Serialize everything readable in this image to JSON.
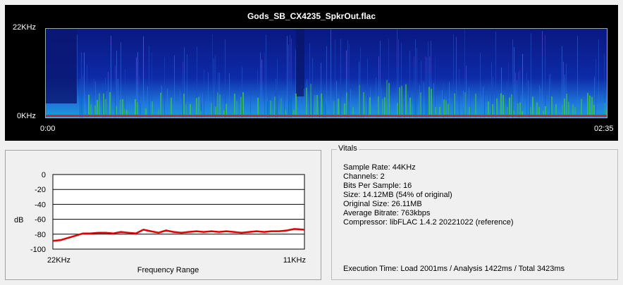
{
  "spectrogram": {
    "title": "Gods_SB_CX4235_SpkrOut.flac",
    "y_top_label": "22KHz",
    "y_bottom_label": "0KHz",
    "x_start_label": "0:00",
    "x_end_label": "02:35",
    "colors": {
      "background": "#000000",
      "low": "#0a1a8c",
      "mid": "#1e7adc",
      "high": "#3cc83c",
      "peak": "#c82828"
    }
  },
  "chart_data": {
    "type": "line",
    "title": "",
    "xlabel": "Frequency Range",
    "ylabel": "dB",
    "x_tick_labels": [
      "22KHz",
      "11KHz"
    ],
    "y_ticks": [
      0,
      -20,
      -40,
      -60,
      -80,
      -100
    ],
    "ylim": [
      -100,
      0
    ],
    "grid": true,
    "series": [
      {
        "color": "#e00000",
        "x": [
          0,
          0.03,
          0.06,
          0.09,
          0.12,
          0.15,
          0.18,
          0.21,
          0.24,
          0.27,
          0.3,
          0.33,
          0.36,
          0.39,
          0.42,
          0.45,
          0.48,
          0.51,
          0.54,
          0.57,
          0.6,
          0.63,
          0.66,
          0.69,
          0.72,
          0.75,
          0.78,
          0.81,
          0.84,
          0.87,
          0.9,
          0.93,
          0.96,
          1.0
        ],
        "values": [
          -89,
          -88,
          -85,
          -82,
          -79,
          -79,
          -78,
          -78,
          -79,
          -77,
          -78,
          -79,
          -74,
          -76,
          -78,
          -75,
          -77,
          -78,
          -77,
          -76,
          -77,
          -76,
          -77,
          -76,
          -77,
          -78,
          -77,
          -76,
          -77,
          -76,
          -76,
          -75,
          -73,
          -74
        ]
      }
    ]
  },
  "vitals": {
    "title": "Vitals",
    "sample_rate": "Sample Rate: 44KHz",
    "channels": "Channels: 2",
    "bits": "Bits Per Sample: 16",
    "size": "Size: 14.12MB (54% of original)",
    "original_size": "Original Size: 26.11MB",
    "bitrate": "Average Bitrate: 763kbps",
    "compressor": "Compressor: libFLAC 1.4.2 20221022 (reference)",
    "execution": "Execution Time: Load 2001ms / Analysis 1422ms / Total 3423ms"
  }
}
